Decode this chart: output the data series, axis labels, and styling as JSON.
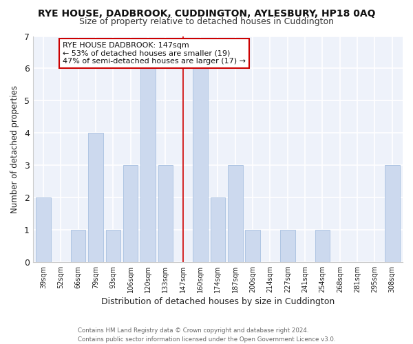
{
  "title": "RYE HOUSE, DADBROOK, CUDDINGTON, AYLESBURY, HP18 0AQ",
  "subtitle": "Size of property relative to detached houses in Cuddington",
  "xlabel": "Distribution of detached houses by size in Cuddington",
  "ylabel": "Number of detached properties",
  "footer_line1": "Contains HM Land Registry data © Crown copyright and database right 2024.",
  "footer_line2": "Contains public sector information licensed under the Open Government Licence v3.0.",
  "bin_labels": [
    "39sqm",
    "52sqm",
    "66sqm",
    "79sqm",
    "93sqm",
    "106sqm",
    "120sqm",
    "133sqm",
    "147sqm",
    "160sqm",
    "174sqm",
    "187sqm",
    "200sqm",
    "214sqm",
    "227sqm",
    "241sqm",
    "254sqm",
    "268sqm",
    "281sqm",
    "295sqm",
    "308sqm"
  ],
  "bar_heights": [
    2,
    0,
    1,
    4,
    1,
    3,
    6,
    3,
    0,
    6,
    2,
    3,
    1,
    0,
    1,
    0,
    1,
    0,
    0,
    0,
    3
  ],
  "highlight_index": 8,
  "highlight_label": "147sqm",
  "bar_color": "#ccd9ee",
  "bar_edge_color": "#a8c0e0",
  "highlight_line_color": "#cc0000",
  "annotation_box_bg": "#ffffff",
  "annotation_box_edge": "#cc0000",
  "annotation_title": "RYE HOUSE DADBROOK: 147sqm",
  "annotation_line1": "← 53% of detached houses are smaller (19)",
  "annotation_line2": "47% of semi-detached houses are larger (17) →",
  "ylim": [
    0,
    7
  ],
  "yticks": [
    0,
    1,
    2,
    3,
    4,
    5,
    6,
    7
  ],
  "fig_bg_color": "#ffffff",
  "plot_bg_color": "#eef2fa",
  "grid_color": "#ffffff",
  "title_fontsize": 10,
  "subtitle_fontsize": 9
}
